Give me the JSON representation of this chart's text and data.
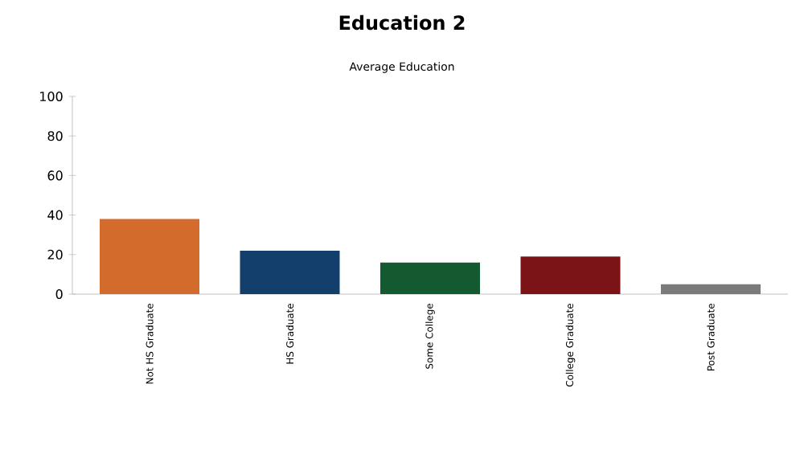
{
  "chart_data": {
    "type": "bar",
    "title": "Education 2",
    "subtitle": "Average Education",
    "categories": [
      "Not HS Graduate",
      "HS Graduate",
      "Some College",
      "College Graduate",
      "Post Graduate"
    ],
    "values": [
      38,
      22,
      16,
      19,
      5
    ],
    "colors": [
      "#d26b2b",
      "#123f6b",
      "#135a30",
      "#7a1416",
      "#7a7a7a"
    ],
    "ylim": [
      0,
      100
    ],
    "yticks": [
      0,
      20,
      40,
      60,
      80,
      100
    ],
    "grid": false
  }
}
